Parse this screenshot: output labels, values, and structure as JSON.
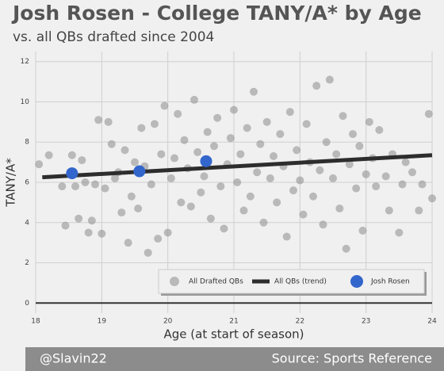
{
  "chart_data": {
    "type": "scatter",
    "title": "Josh Rosen - College TANY/A* by Age",
    "subtitle": "vs. all QBs drafted since 2004",
    "x_label": "Age (at start of season)",
    "y_label": "TANY/A*",
    "footer_left": "@Slavin22",
    "footer_right": "Source: Sports Reference",
    "xlim": [
      18,
      24
    ],
    "xticks": [
      18,
      19,
      20,
      21,
      22,
      23,
      24
    ],
    "ylim": [
      -0.5,
      12.5
    ],
    "yticks": [
      0,
      2,
      4,
      6,
      8,
      10,
      12
    ],
    "grid": true,
    "zero_line": true,
    "legend": "lower right",
    "series": [
      {
        "name": "All Drafted QBs",
        "kind": "points",
        "color": "#8c8c8c",
        "x": [
          18.05,
          18.2,
          18.4,
          18.45,
          18.55,
          18.6,
          18.65,
          18.7,
          18.75,
          18.8,
          18.85,
          18.9,
          18.95,
          19.0,
          19.05,
          19.1,
          19.15,
          19.2,
          19.25,
          19.3,
          19.35,
          19.4,
          19.45,
          19.5,
          19.55,
          19.6,
          19.65,
          19.7,
          19.75,
          19.8,
          19.85,
          19.9,
          19.95,
          20.0,
          20.05,
          20.1,
          20.15,
          20.2,
          20.25,
          20.3,
          20.35,
          20.4,
          20.45,
          20.5,
          20.55,
          20.6,
          20.65,
          20.7,
          20.75,
          20.8,
          20.85,
          20.9,
          20.95,
          21.0,
          21.05,
          21.1,
          21.15,
          21.2,
          21.25,
          21.3,
          21.35,
          21.4,
          21.45,
          21.5,
          21.55,
          21.6,
          21.65,
          21.7,
          21.75,
          21.8,
          21.85,
          21.9,
          21.95,
          22.0,
          22.05,
          22.1,
          22.15,
          22.2,
          22.25,
          22.3,
          22.35,
          22.4,
          22.45,
          22.5,
          22.55,
          22.6,
          22.65,
          22.7,
          22.75,
          22.8,
          22.85,
          22.9,
          22.95,
          23.0,
          23.05,
          23.1,
          23.15,
          23.2,
          23.3,
          23.35,
          23.4,
          23.5,
          23.55,
          23.6,
          23.7,
          23.8,
          23.85,
          23.95,
          24.0
        ],
        "values": [
          6.9,
          7.35,
          5.8,
          3.85,
          7.35,
          5.8,
          4.2,
          7.1,
          6.0,
          3.5,
          4.1,
          5.9,
          9.1,
          3.45,
          5.7,
          9.0,
          7.9,
          6.2,
          6.5,
          4.5,
          7.6,
          3.0,
          5.3,
          7.0,
          4.7,
          8.7,
          6.8,
          2.5,
          5.9,
          8.9,
          3.2,
          7.4,
          9.8,
          3.5,
          6.2,
          7.2,
          9.4,
          5.0,
          8.1,
          6.7,
          4.8,
          10.1,
          7.5,
          5.5,
          6.3,
          8.5,
          4.2,
          7.8,
          9.2,
          5.8,
          3.7,
          6.9,
          8.2,
          9.6,
          6.0,
          7.4,
          4.6,
          8.7,
          5.3,
          10.5,
          6.5,
          7.9,
          4.0,
          9.0,
          6.2,
          7.3,
          5.0,
          8.4,
          6.8,
          3.3,
          9.5,
          5.6,
          7.6,
          6.1,
          4.4,
          8.9,
          7.0,
          5.3,
          10.8,
          6.6,
          3.9,
          8.0,
          11.1,
          6.2,
          7.4,
          4.7,
          9.3,
          2.7,
          6.9,
          8.4,
          5.7,
          7.8,
          3.6,
          6.4,
          9.0,
          7.2,
          5.8,
          8.6,
          6.3,
          4.6,
          7.4,
          3.5,
          5.9,
          7.0,
          6.5,
          4.6,
          5.9,
          9.4,
          5.2
        ]
      },
      {
        "name": "All QBs (trend)",
        "kind": "line",
        "color": "#2d2d2d",
        "x": [
          18.1,
          24
        ],
        "values": [
          6.25,
          7.35
        ]
      },
      {
        "name": "Josh Rosen",
        "kind": "points",
        "color": "#3366cc",
        "x": [
          18.55,
          19.57,
          20.58
        ],
        "values": [
          6.45,
          6.55,
          7.05
        ]
      }
    ]
  }
}
